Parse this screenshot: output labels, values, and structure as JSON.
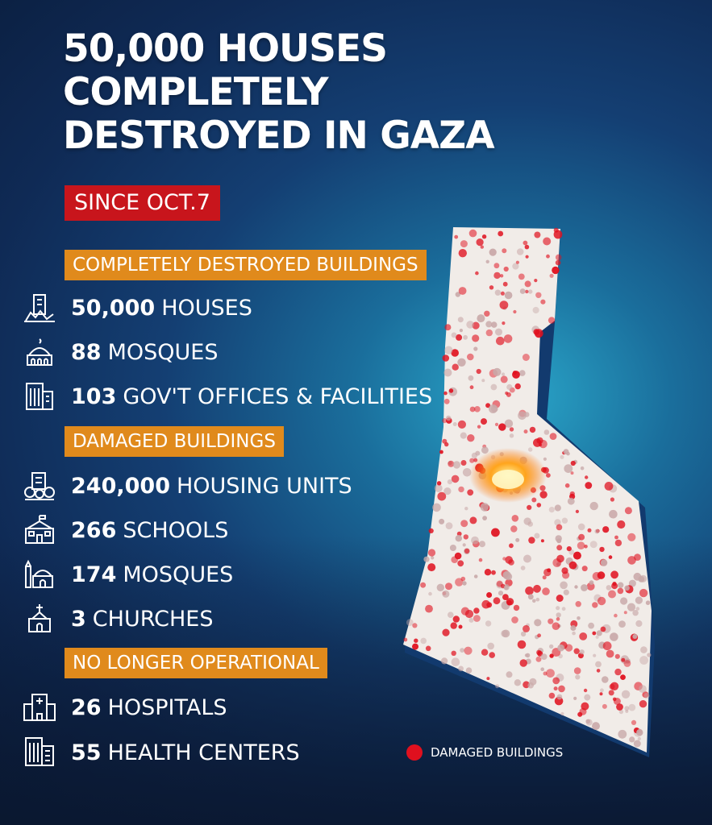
{
  "title_lines": [
    "50,000 HOUSES",
    "COMPLETELY",
    "DESTROYED IN GAZA"
  ],
  "since": "SINCE OCT.7",
  "sections": {
    "destroyed": "COMPLETELY DESTROYED BUILDINGS",
    "damaged": "DAMAGED BUILDINGS",
    "not_operational": "NO LONGER OPERATIONAL"
  },
  "stats": [
    {
      "number": "50,000",
      "label": "HOUSES",
      "icon": "house-icon"
    },
    {
      "number": "88",
      "label": "MOSQUES",
      "icon": "mosque-icon"
    },
    {
      "number": "103",
      "label": "GOV'T OFFICES & FACILITIES",
      "icon": "office-building-icon"
    },
    {
      "number": "240,000",
      "label": "HOUSING UNITS",
      "icon": "housing-units-icon"
    },
    {
      "number": "266",
      "label": "SCHOOLS",
      "icon": "school-icon"
    },
    {
      "number": "174",
      "label": "MOSQUES",
      "icon": "mosque-minaret-icon"
    },
    {
      "number": "3",
      "label": "CHURCHES",
      "icon": "church-icon"
    },
    {
      "number": "26",
      "label": "HOSPITALS",
      "icon": "hospital-icon"
    },
    {
      "number": "55",
      "label": "HEALTH CENTERS",
      "icon": "health-center-icon"
    }
  ],
  "legend": {
    "label": "DAMAGED BUILDINGS",
    "color": "#e0101e"
  },
  "colors": {
    "since_bg": "#c8151c",
    "section_bg": "#e08a1c",
    "background": "#143f73"
  }
}
